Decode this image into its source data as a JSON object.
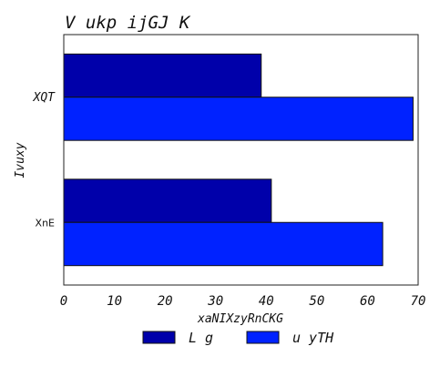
{
  "chart_data": {
    "type": "bar",
    "orientation": "horizontal",
    "title": "V ukp ijGJ K",
    "xlabel": "xaNIXzyRnCKG",
    "ylabel": "Ivuxy",
    "categories": [
      "XQT",
      "XnE"
    ],
    "series": [
      {
        "name": "L g",
        "color": "#0000aa",
        "values": [
          39,
          41
        ]
      },
      {
        "name": "u yTH",
        "color": "#0022ff",
        "values": [
          69,
          63
        ]
      }
    ],
    "xlim": [
      0,
      70
    ],
    "xticks": [
      "0",
      "10",
      "20",
      "30",
      "40",
      "50",
      "60",
      "70"
    ],
    "grid": false,
    "legend": "bottom-center"
  }
}
